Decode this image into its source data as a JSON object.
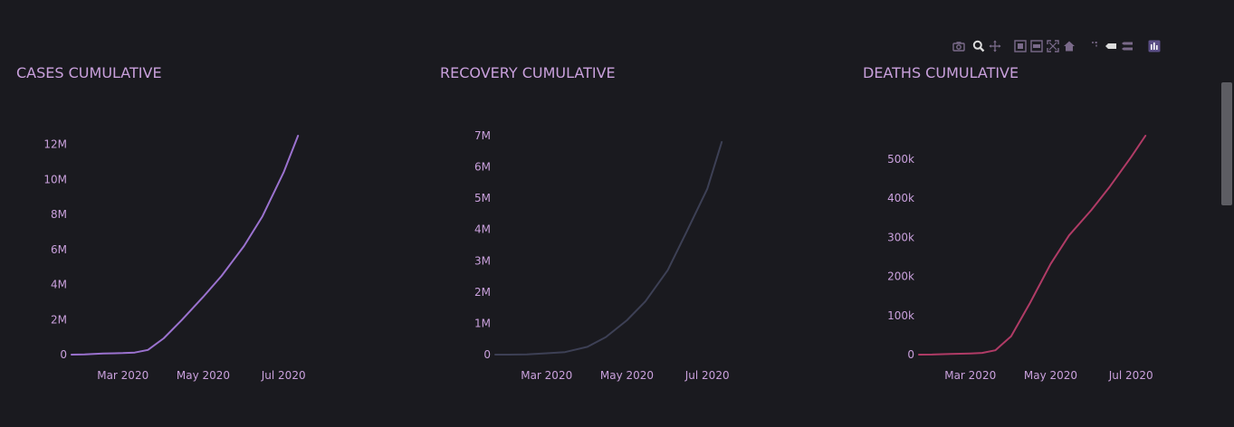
{
  "modebar": {
    "buttons": [
      {
        "name": "camera-icon"
      },
      {
        "name": "zoom-icon"
      },
      {
        "name": "pan-icon"
      },
      {
        "name": "zoom-in-icon"
      },
      {
        "name": "zoom-out-icon"
      },
      {
        "name": "autoscale-icon"
      },
      {
        "name": "home-icon"
      },
      {
        "name": "spike-lines-icon"
      },
      {
        "name": "hover-closest-icon"
      },
      {
        "name": "hover-compare-icon"
      },
      {
        "name": "plotly-logo-icon"
      }
    ]
  },
  "colors": {
    "background": "#1a1a1f",
    "text": "#c9a0dc",
    "cases_line": "#9b72cf",
    "recovery_line": "#3d4055",
    "deaths_line": "#b03b66"
  },
  "chart_data": [
    {
      "type": "line",
      "title": "CASES CUMULATIVE",
      "xlabel": "",
      "ylabel": "",
      "x_ticks": [
        "Mar 2020",
        "May 2020",
        "Jul 2020"
      ],
      "y_ticks": [
        "0",
        "2M",
        "4M",
        "6M",
        "8M",
        "10M",
        "12M"
      ],
      "ylim": [
        0,
        12500000
      ],
      "grid": false,
      "series": [
        {
          "color": "#9b72cf",
          "x": [
            "2020-01-22",
            "2020-02-01",
            "2020-02-15",
            "2020-03-01",
            "2020-03-10",
            "2020-03-20",
            "2020-04-01",
            "2020-04-15",
            "2020-05-01",
            "2020-05-15",
            "2020-06-01",
            "2020-06-15",
            "2020-07-01",
            "2020-07-12"
          ],
          "y": [
            0,
            12000,
            69000,
            88000,
            120000,
            270000,
            930000,
            2000000,
            3300000,
            4500000,
            6200000,
            7900000,
            10400000,
            12500000
          ]
        }
      ]
    },
    {
      "type": "line",
      "title": "RECOVERY CUMULATIVE",
      "xlabel": "",
      "ylabel": "",
      "x_ticks": [
        "Mar 2020",
        "May 2020",
        "Jul 2020"
      ],
      "y_ticks": [
        "0",
        "1M",
        "2M",
        "3M",
        "4M",
        "5M",
        "6M",
        "7M"
      ],
      "ylim": [
        0,
        7000000
      ],
      "grid": false,
      "series": [
        {
          "color": "#3d4055",
          "x": [
            "2020-01-22",
            "2020-02-01",
            "2020-02-15",
            "2020-03-01",
            "2020-03-15",
            "2020-04-01",
            "2020-04-15",
            "2020-05-01",
            "2020-05-15",
            "2020-06-01",
            "2020-06-15",
            "2020-07-01",
            "2020-07-12"
          ],
          "y": [
            0,
            500,
            10000,
            42000,
            80000,
            250000,
            560000,
            1100000,
            1700000,
            2700000,
            3900000,
            5300000,
            6800000
          ]
        }
      ]
    },
    {
      "type": "line",
      "title": "DEATHS CUMULATIVE",
      "xlabel": "",
      "ylabel": "",
      "x_ticks": [
        "Mar 2020",
        "May 2020",
        "Jul 2020"
      ],
      "y_ticks": [
        "0",
        "100k",
        "200k",
        "300k",
        "400k",
        "500k"
      ],
      "ylim": [
        0,
        560000
      ],
      "grid": false,
      "series": [
        {
          "color": "#b03b66",
          "x": [
            "2020-01-22",
            "2020-02-01",
            "2020-02-15",
            "2020-03-01",
            "2020-03-10",
            "2020-03-20",
            "2020-04-01",
            "2020-04-15",
            "2020-05-01",
            "2020-05-15",
            "2020-06-01",
            "2020-06-15",
            "2020-07-01",
            "2020-07-12"
          ],
          "y": [
            0,
            260,
            1600,
            3000,
            4300,
            11000,
            47000,
            130000,
            232000,
            305000,
            370000,
            430000,
            505000,
            560000
          ]
        }
      ]
    }
  ]
}
